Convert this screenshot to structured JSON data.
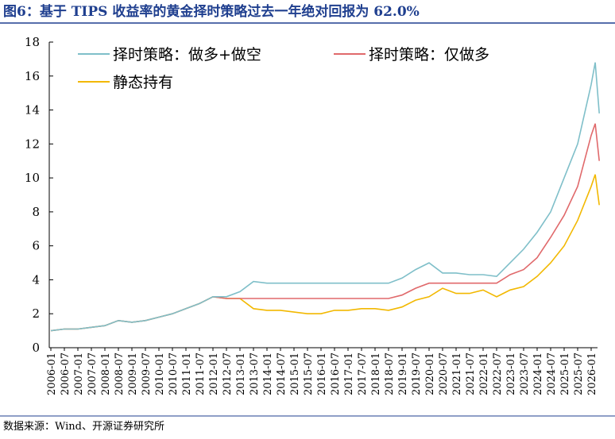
{
  "chart_data": {
    "type": "line",
    "title": "图6：基于 TIPS 收益率的黄金择时策略过去一年绝对回报为 62.0%",
    "source": "数据来源：Wind、开源证券研究所",
    "x": [
      "2006-01",
      "2006-07",
      "2007-01",
      "2007-07",
      "2008-01",
      "2008-07",
      "2009-01",
      "2009-07",
      "2010-01",
      "2010-07",
      "2011-01",
      "2011-07",
      "2012-01",
      "2012-07",
      "2013-01",
      "2013-07",
      "2014-01",
      "2014-07",
      "2015-01",
      "2015-07",
      "2016-01",
      "2016-07",
      "2017-01",
      "2017-07",
      "2018-01",
      "2018-07",
      "2019-01",
      "2019-07",
      "2020-01",
      "2020-07",
      "2021-01",
      "2021-07",
      "2022-01",
      "2022-07",
      "2023-01",
      "2023-07",
      "2024-01",
      "2024-07",
      "2025-01",
      "2025-07",
      "2026-01",
      null,
      null
    ],
    "series": [
      {
        "name": "择时策略：做多+做空",
        "color": "#7fbfc9",
        "values": [
          1.0,
          1.1,
          1.1,
          1.2,
          1.3,
          1.6,
          1.5,
          1.6,
          1.8,
          2.0,
          2.3,
          2.6,
          3.0,
          3.0,
          3.3,
          3.9,
          3.8,
          3.8,
          3.8,
          3.8,
          3.8,
          3.8,
          3.8,
          3.8,
          3.8,
          3.8,
          4.1,
          4.6,
          5.0,
          4.4,
          4.4,
          4.3,
          4.3,
          4.2,
          5.0,
          5.8,
          6.8,
          8.0,
          10.0,
          12.0,
          15.5,
          16.8,
          13.8
        ]
      },
      {
        "name": "择时策略：仅做多",
        "color": "#e0696b",
        "values": [
          1.0,
          1.1,
          1.1,
          1.2,
          1.3,
          1.6,
          1.5,
          1.6,
          1.8,
          2.0,
          2.3,
          2.6,
          3.0,
          2.9,
          2.9,
          2.9,
          2.9,
          2.9,
          2.9,
          2.9,
          2.9,
          2.9,
          2.9,
          2.9,
          2.9,
          2.9,
          3.1,
          3.5,
          3.8,
          3.8,
          3.8,
          3.8,
          3.8,
          3.8,
          4.3,
          4.6,
          5.3,
          6.5,
          7.8,
          9.5,
          12.5,
          13.2,
          11.0
        ]
      },
      {
        "name": "静态持有",
        "color": "#f2b800",
        "values": [
          1.0,
          1.1,
          1.1,
          1.2,
          1.3,
          1.6,
          1.5,
          1.6,
          1.8,
          2.0,
          2.3,
          2.6,
          3.0,
          2.9,
          2.9,
          2.3,
          2.2,
          2.2,
          2.1,
          2.0,
          2.0,
          2.2,
          2.2,
          2.3,
          2.3,
          2.2,
          2.4,
          2.8,
          3.0,
          3.5,
          3.2,
          3.2,
          3.4,
          3.0,
          3.4,
          3.6,
          4.2,
          5.0,
          6.0,
          7.5,
          9.5,
          10.2,
          8.4
        ]
      }
    ],
    "ylim": [
      0,
      18
    ],
    "yticks": [
      0,
      2,
      4,
      6,
      8,
      10,
      12,
      14,
      16,
      18
    ]
  }
}
